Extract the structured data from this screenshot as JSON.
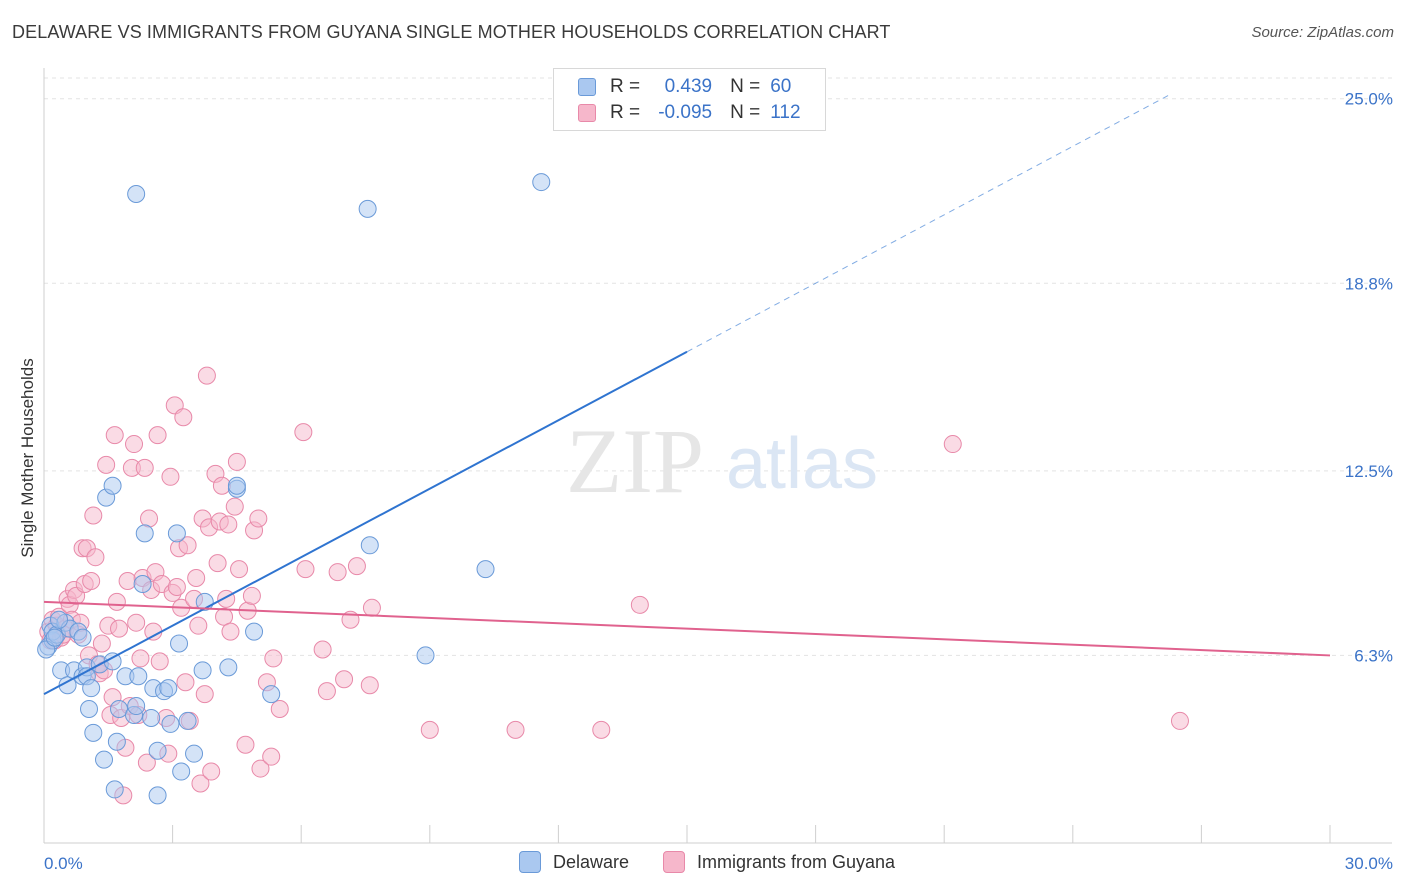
{
  "title": "DELAWARE VS IMMIGRANTS FROM GUYANA SINGLE MOTHER HOUSEHOLDS CORRELATION CHART",
  "source": "Source: ZipAtlas.com",
  "watermark": {
    "zip": "ZIP",
    "atlas": "atlas"
  },
  "legend": {
    "r_label": "R =",
    "n_label": "N =",
    "delaware": {
      "r": "0.439",
      "n": "60"
    },
    "guyana": {
      "r": "-0.095",
      "n": "112"
    }
  },
  "bottom_legend": {
    "delaware": "Delaware",
    "guyana": "Immigrants from Guyana"
  },
  "colors": {
    "delaware_fill": "#aac8f0",
    "delaware_stroke": "#6a9ad8",
    "delaware_line": "#2f74d0",
    "guyana_fill": "#f6b7cb",
    "guyana_stroke": "#e889a9",
    "guyana_line": "#e0628e",
    "tick_text": "#3b73c8"
  },
  "chart_data": {
    "type": "scatter",
    "title": "DELAWARE VS IMMIGRANTS FROM GUYANA SINGLE MOTHER HOUSEHOLDS CORRELATION CHART",
    "xlabel": "",
    "ylabel": "Single Mother Households",
    "xlim": [
      0,
      30
    ],
    "ylim": [
      0,
      26.3
    ],
    "x_tick_labels": [
      "0.0%",
      "30.0%"
    ],
    "y_tick_values": [
      6.3,
      12.5,
      18.8,
      25.0
    ],
    "y_tick_labels": [
      "6.3%",
      "12.5%",
      "18.8%",
      "25.0%"
    ],
    "grid": true,
    "series": [
      {
        "name": "Delaware",
        "r": 0.439,
        "n": 60,
        "trend": {
          "x0": 0,
          "y0": 5.0,
          "x1": 15.0,
          "y1": 16.5,
          "dashed_to_x": 26.3
        },
        "points": [
          [
            0.1,
            6.6
          ],
          [
            0.15,
            7.3
          ],
          [
            0.2,
            6.8
          ],
          [
            0.2,
            7.1
          ],
          [
            0.3,
            7.0
          ],
          [
            0.4,
            5.8
          ],
          [
            0.5,
            7.4
          ],
          [
            0.55,
            5.3
          ],
          [
            0.6,
            7.2
          ],
          [
            0.7,
            5.8
          ],
          [
            0.8,
            7.1
          ],
          [
            0.9,
            5.6
          ],
          [
            0.9,
            6.9
          ],
          [
            1.0,
            5.9
          ],
          [
            1.0,
            5.6
          ],
          [
            1.05,
            4.5
          ],
          [
            1.1,
            5.2
          ],
          [
            1.15,
            3.7
          ],
          [
            1.3,
            6.0
          ],
          [
            1.4,
            2.8
          ],
          [
            1.45,
            11.6
          ],
          [
            1.6,
            12.0
          ],
          [
            1.6,
            6.1
          ],
          [
            1.65,
            1.8
          ],
          [
            1.7,
            3.4
          ],
          [
            1.75,
            4.5
          ],
          [
            1.9,
            5.6
          ],
          [
            2.1,
            4.3
          ],
          [
            2.15,
            4.6
          ],
          [
            2.2,
            5.6
          ],
          [
            2.15,
            21.8
          ],
          [
            2.3,
            8.7
          ],
          [
            2.35,
            10.4
          ],
          [
            2.5,
            4.2
          ],
          [
            2.55,
            5.2
          ],
          [
            2.65,
            3.1
          ],
          [
            2.65,
            1.6
          ],
          [
            2.8,
            5.1
          ],
          [
            2.9,
            5.2
          ],
          [
            2.95,
            4.0
          ],
          [
            3.1,
            10.4
          ],
          [
            3.15,
            6.7
          ],
          [
            3.2,
            2.4
          ],
          [
            3.35,
            4.1
          ],
          [
            3.5,
            3.0
          ],
          [
            3.7,
            5.8
          ],
          [
            3.75,
            8.1
          ],
          [
            4.3,
            5.9
          ],
          [
            4.5,
            11.9
          ],
          [
            4.5,
            12.0
          ],
          [
            4.9,
            7.1
          ],
          [
            5.3,
            5.0
          ],
          [
            7.55,
            21.3
          ],
          [
            7.6,
            10.0
          ],
          [
            8.9,
            6.3
          ],
          [
            10.3,
            9.2
          ],
          [
            11.6,
            22.2
          ],
          [
            0.05,
            6.5
          ],
          [
            0.25,
            6.9
          ],
          [
            0.35,
            7.5
          ]
        ]
      },
      {
        "name": "Immigrants from Guyana",
        "r": -0.095,
        "n": 112,
        "trend": {
          "x0": 0,
          "y0": 8.1,
          "x1": 30,
          "y1": 6.3
        },
        "points": [
          [
            0.1,
            7.1
          ],
          [
            0.15,
            6.8
          ],
          [
            0.2,
            7.5
          ],
          [
            0.25,
            6.8
          ],
          [
            0.3,
            7.3
          ],
          [
            0.35,
            7.6
          ],
          [
            0.4,
            6.9
          ],
          [
            0.45,
            7.0
          ],
          [
            0.5,
            7.2
          ],
          [
            0.55,
            8.2
          ],
          [
            0.6,
            8.0
          ],
          [
            0.65,
            7.5
          ],
          [
            0.7,
            8.5
          ],
          [
            0.75,
            8.3
          ],
          [
            0.8,
            7.0
          ],
          [
            0.85,
            7.4
          ],
          [
            0.9,
            9.9
          ],
          [
            0.95,
            8.7
          ],
          [
            1.0,
            9.9
          ],
          [
            1.05,
            6.3
          ],
          [
            1.1,
            8.8
          ],
          [
            1.15,
            11.0
          ],
          [
            1.2,
            9.6
          ],
          [
            1.25,
            6.0
          ],
          [
            1.3,
            5.7
          ],
          [
            1.35,
            6.7
          ],
          [
            1.4,
            5.8
          ],
          [
            1.45,
            12.7
          ],
          [
            1.5,
            7.3
          ],
          [
            1.55,
            4.3
          ],
          [
            1.6,
            4.9
          ],
          [
            1.65,
            13.7
          ],
          [
            1.7,
            8.1
          ],
          [
            1.75,
            7.2
          ],
          [
            1.8,
            4.2
          ],
          [
            1.85,
            1.6
          ],
          [
            1.9,
            3.2
          ],
          [
            1.95,
            8.8
          ],
          [
            2.0,
            4.6
          ],
          [
            2.05,
            12.6
          ],
          [
            2.1,
            13.4
          ],
          [
            2.15,
            7.4
          ],
          [
            2.2,
            4.3
          ],
          [
            2.25,
            6.2
          ],
          [
            2.3,
            8.9
          ],
          [
            2.35,
            12.6
          ],
          [
            2.4,
            2.7
          ],
          [
            2.45,
            10.9
          ],
          [
            2.5,
            8.5
          ],
          [
            2.55,
            7.1
          ],
          [
            2.6,
            9.1
          ],
          [
            2.65,
            13.7
          ],
          [
            2.7,
            6.1
          ],
          [
            2.75,
            8.7
          ],
          [
            2.85,
            4.2
          ],
          [
            2.9,
            3.0
          ],
          [
            2.95,
            12.3
          ],
          [
            3.0,
            8.4
          ],
          [
            3.05,
            14.7
          ],
          [
            3.1,
            8.6
          ],
          [
            3.15,
            9.9
          ],
          [
            3.2,
            7.9
          ],
          [
            3.25,
            14.3
          ],
          [
            3.3,
            5.4
          ],
          [
            3.35,
            10.0
          ],
          [
            3.4,
            4.1
          ],
          [
            3.5,
            8.2
          ],
          [
            3.55,
            8.9
          ],
          [
            3.6,
            7.3
          ],
          [
            3.65,
            2.0
          ],
          [
            3.7,
            10.9
          ],
          [
            3.75,
            5.0
          ],
          [
            3.8,
            15.7
          ],
          [
            3.85,
            10.6
          ],
          [
            3.9,
            2.4
          ],
          [
            4.0,
            12.4
          ],
          [
            4.05,
            9.4
          ],
          [
            4.1,
            10.8
          ],
          [
            4.15,
            12.0
          ],
          [
            4.2,
            7.6
          ],
          [
            4.25,
            8.2
          ],
          [
            4.3,
            10.7
          ],
          [
            4.35,
            7.1
          ],
          [
            4.45,
            11.3
          ],
          [
            4.5,
            12.8
          ],
          [
            4.55,
            9.2
          ],
          [
            4.7,
            3.3
          ],
          [
            4.75,
            7.8
          ],
          [
            4.85,
            8.3
          ],
          [
            4.9,
            10.5
          ],
          [
            5.0,
            10.9
          ],
          [
            5.05,
            2.5
          ],
          [
            5.2,
            5.4
          ],
          [
            5.3,
            2.9
          ],
          [
            5.35,
            6.2
          ],
          [
            5.5,
            4.5
          ],
          [
            6.05,
            13.8
          ],
          [
            6.1,
            9.2
          ],
          [
            6.5,
            6.5
          ],
          [
            6.6,
            5.1
          ],
          [
            6.85,
            9.1
          ],
          [
            7.0,
            5.5
          ],
          [
            7.15,
            7.5
          ],
          [
            7.3,
            9.3
          ],
          [
            7.6,
            5.3
          ],
          [
            7.65,
            7.9
          ],
          [
            9.0,
            3.8
          ],
          [
            11.0,
            3.8
          ],
          [
            13.0,
            3.8
          ],
          [
            13.9,
            8.0
          ],
          [
            21.2,
            13.4
          ],
          [
            26.5,
            4.1
          ]
        ]
      }
    ]
  }
}
